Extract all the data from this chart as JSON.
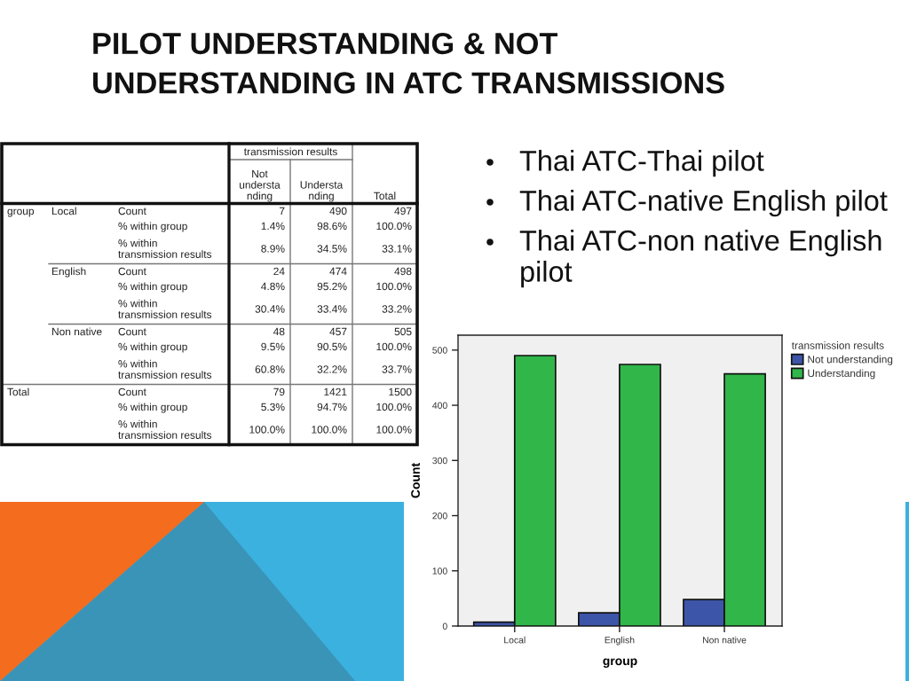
{
  "chart_data": [
    {
      "type": "other",
      "title": "PILOT UNDERSTANDING & NOT\nUNDERSTANDING IN ATC TRANSMISSIONS",
      "annotations": [
        "Thai ATC-Thai pilot",
        "Thai ATC-native English pilot",
        "Thai ATC-non native English pilot"
      ]
    },
    {
      "type": "other",
      "xlabel": "transmission results",
      "ylabel": "group",
      "categories": [
        "Not\nundersta\nnding",
        "Understa\nnding",
        "Total"
      ],
      "y_categories": [
        "Count",
        "% within group",
        "% within\ntransmission results",
        "Count",
        "% within group",
        "% within\ntransmission results",
        "Count",
        "% within group",
        "% within\ntransmission results",
        "Count",
        "% within group",
        "% within\ntransmission results"
      ],
      "y2_categories": [
        "Local",
        null,
        null,
        "English",
        null,
        null,
        "Non native",
        null,
        null,
        "Total",
        null,
        null
      ],
      "cell_labels": [
        [
          "7",
          "490",
          "497"
        ],
        [
          "1.4%",
          "98.6%",
          "100.0%"
        ],
        [
          "8.9%",
          "34.5%",
          "33.1%"
        ],
        [
          "24",
          "474",
          "498"
        ],
        [
          "4.8%",
          "95.2%",
          "100.0%"
        ],
        [
          "30.4%",
          "33.4%",
          "33.2%"
        ],
        [
          "48",
          "457",
          "505"
        ],
        [
          "9.5%",
          "90.5%",
          "100.0%"
        ],
        [
          "60.8%",
          "32.2%",
          "33.7%"
        ],
        [
          "79",
          "1421",
          "1500"
        ],
        [
          "5.3%",
          "94.7%",
          "100.0%"
        ],
        [
          "100.0%",
          "100.0%",
          "100.0%"
        ]
      ]
    },
    {
      "type": "bar",
      "xlabel": "group",
      "ylabel": "Count",
      "legend_title": "transmission results",
      "legend": "top right",
      "categories": [
        "Local",
        "English",
        "Non native"
      ],
      "series": [
        {
          "name": "Not understanding",
          "color": "#3d55a8",
          "values": [
            7,
            24,
            48
          ]
        },
        {
          "name": "Understanding",
          "color": "#30b649",
          "values": [
            490,
            474,
            457
          ]
        }
      ],
      "ylim": [
        0,
        527
      ],
      "yticks": [
        0,
        100,
        200,
        300,
        400,
        500
      ]
    }
  ]
}
